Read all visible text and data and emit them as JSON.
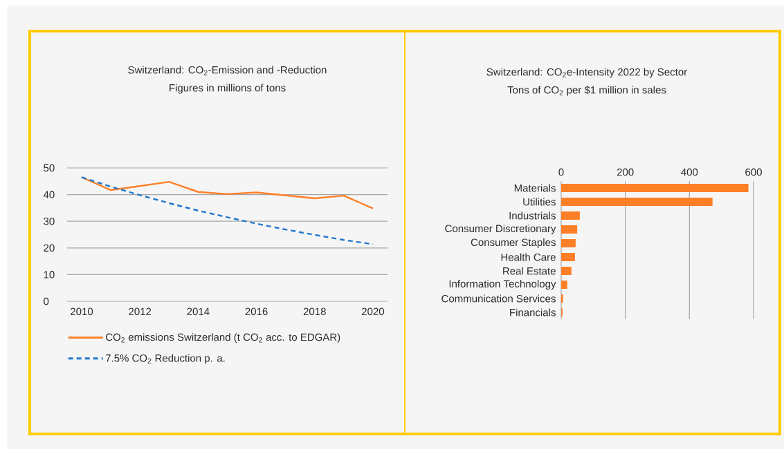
{
  "chart_data": [
    {
      "type": "line",
      "title": "Switzerland: CO$_{2}$-Emission and -Reduction",
      "subtitle": "Figures in millions of tons",
      "x": [
        2010,
        2011,
        2012,
        2013,
        2014,
        2015,
        2016,
        2017,
        2018,
        2019,
        2020
      ],
      "series": [
        {
          "name": "CO$_{2}$ emissions Switzerland (t CO$_{2}$ acc. to EDGAR)",
          "color": "#ff7f27",
          "line_style": "solid",
          "values": [
            46.5,
            41.7,
            43.2,
            44.8,
            41.0,
            40.2,
            40.8,
            39.7,
            38.6,
            39.6,
            34.8
          ]
        },
        {
          "name": "7.5% CO$_{2}$ Reduction p. a.",
          "color": "#1f77d0",
          "line_style": "dashed",
          "values": [
            46.5,
            43.0,
            39.8,
            36.8,
            34.0,
            31.5,
            29.1,
            26.9,
            24.9,
            23.0,
            21.4
          ]
        }
      ],
      "xlim": [
        2009.5,
        2020.5
      ],
      "ylim": [
        0,
        50
      ],
      "xticks": [
        2010,
        2012,
        2014,
        2016,
        2018,
        2020
      ],
      "yticks": [
        0,
        10,
        20,
        30,
        40,
        50
      ],
      "grid": "y",
      "legend": "bottom"
    },
    {
      "type": "bar",
      "orientation": "horizontal",
      "title": "Switzerland: CO$_{2}$e-Intensity 2022 by Sector",
      "subtitle": "Tons of CO$_{2}$ per $1 million in sales",
      "categories": [
        "Materials",
        "Utilities",
        "Industrials",
        "Consumer Discretionary",
        "Consumer Staples",
        "Health Care",
        "Real Estate",
        "Information Technology",
        "Communication Services",
        "Financials"
      ],
      "values": [
        584,
        472,
        58,
        50,
        45,
        43,
        32,
        19,
        6,
        4
      ],
      "color": "#ff7f27",
      "xlim": [
        0,
        600
      ],
      "xticks": [
        0,
        200,
        400,
        600
      ],
      "grid": "x"
    }
  ]
}
